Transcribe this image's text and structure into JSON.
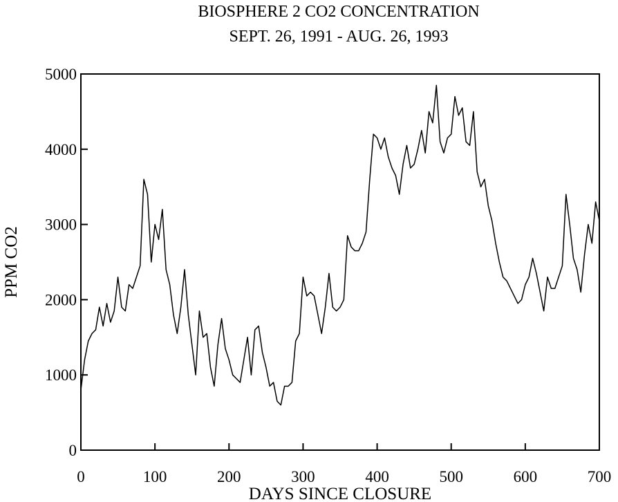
{
  "chart_data": {
    "type": "line",
    "title": "BIOSPHERE 2 CO2 CONCENTRATION",
    "subtitle": "SEPT. 26, 1991 - AUG. 26, 1993",
    "x_label": "DAYS SINCE CLOSURE",
    "y_label": "PPM CO2",
    "x": [
      0,
      5,
      10,
      15,
      20,
      25,
      30,
      35,
      40,
      45,
      50,
      55,
      60,
      65,
      70,
      75,
      80,
      85,
      90,
      95,
      100,
      105,
      110,
      115,
      120,
      125,
      130,
      135,
      140,
      145,
      150,
      155,
      160,
      165,
      170,
      175,
      180,
      185,
      190,
      195,
      200,
      205,
      210,
      215,
      220,
      225,
      230,
      235,
      240,
      245,
      250,
      255,
      260,
      265,
      270,
      275,
      280,
      285,
      290,
      295,
      300,
      305,
      310,
      315,
      320,
      325,
      330,
      335,
      340,
      345,
      350,
      355,
      360,
      365,
      370,
      375,
      380,
      385,
      390,
      395,
      400,
      405,
      410,
      415,
      420,
      425,
      430,
      435,
      440,
      445,
      450,
      455,
      460,
      465,
      470,
      475,
      480,
      485,
      490,
      495,
      500,
      505,
      510,
      515,
      520,
      525,
      530,
      535,
      540,
      545,
      550,
      555,
      560,
      565,
      570,
      575,
      580,
      585,
      590,
      595,
      600,
      605,
      610,
      615,
      620,
      625,
      630,
      635,
      640,
      645,
      650,
      655,
      660,
      665,
      670,
      675,
      680,
      685,
      690,
      695,
      700
    ],
    "series": [
      {
        "color": "#000000",
        "values": [
          800,
          1200,
          1450,
          1550,
          1600,
          1900,
          1650,
          1950,
          1700,
          1850,
          2300,
          1900,
          1850,
          2200,
          2150,
          2300,
          2450,
          3600,
          3400,
          2500,
          3000,
          2800,
          3200,
          2400,
          2200,
          1800,
          1550,
          1900,
          2400,
          1800,
          1400,
          1000,
          1850,
          1500,
          1550,
          1100,
          850,
          1400,
          1750,
          1350,
          1200,
          1000,
          950,
          900,
          1200,
          1500,
          1000,
          1600,
          1650,
          1300,
          1100,
          850,
          900,
          650,
          600,
          850,
          850,
          900,
          1450,
          1550,
          2300,
          2050,
          2100,
          2050,
          1800,
          1550,
          1900,
          2350,
          1900,
          1850,
          1900,
          2000,
          2850,
          2700,
          2650,
          2650,
          2750,
          2900,
          3600,
          4200,
          4150,
          4000,
          4150,
          3900,
          3750,
          3650,
          3400,
          3800,
          4050,
          3750,
          3800,
          4000,
          4250,
          3950,
          4500,
          4350,
          4850,
          4100,
          3950,
          4150,
          4200,
          4700,
          4450,
          4550,
          4100,
          4050,
          4500,
          3700,
          3500,
          3600,
          3250,
          3050,
          2750,
          2500,
          2300,
          2250,
          2150,
          2050,
          1950,
          2000,
          2200,
          2300,
          2550,
          2350,
          2100,
          1850,
          2300,
          2150,
          2150,
          2300,
          2450,
          3400,
          3000,
          2550,
          2400,
          2100,
          2600,
          3000,
          2750,
          3300,
          3050
        ]
      }
    ],
    "xlim": [
      0,
      700
    ],
    "xticks": [
      0,
      100,
      200,
      300,
      400,
      500,
      600,
      700
    ],
    "ylim": [
      0,
      5000
    ],
    "yticks": [
      0,
      1000,
      2000,
      3000,
      4000,
      5000
    ]
  }
}
